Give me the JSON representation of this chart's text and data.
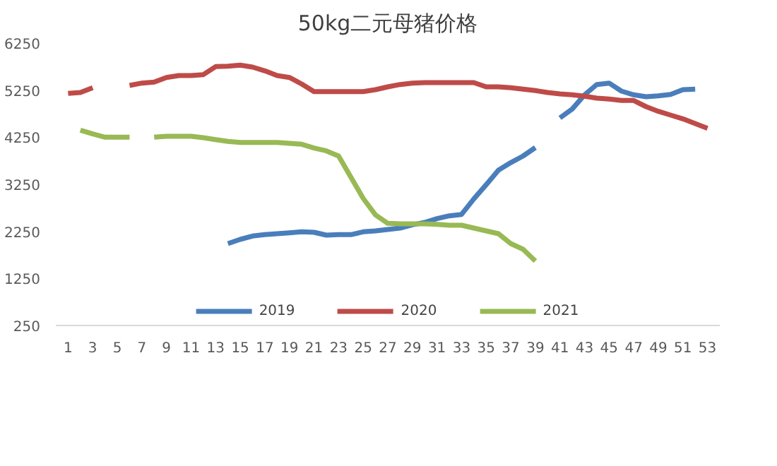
{
  "chart_data": {
    "type": "line",
    "title": "50kg二元母猪价格",
    "x": [
      1,
      2,
      3,
      4,
      5,
      6,
      7,
      8,
      9,
      10,
      11,
      12,
      13,
      14,
      15,
      16,
      17,
      18,
      19,
      20,
      21,
      22,
      23,
      24,
      25,
      26,
      27,
      28,
      29,
      30,
      31,
      32,
      33,
      34,
      35,
      36,
      37,
      38,
      39,
      40,
      41,
      42,
      43,
      44,
      45,
      46,
      47,
      48,
      49,
      50,
      51,
      52,
      53
    ],
    "series": [
      {
        "name": "2019",
        "color": "#4a7ebb",
        "values": [
          null,
          null,
          null,
          null,
          null,
          null,
          null,
          null,
          null,
          null,
          null,
          null,
          null,
          1990,
          2080,
          2150,
          2180,
          2200,
          2220,
          2240,
          2230,
          2170,
          2180,
          2180,
          2240,
          2260,
          2290,
          2320,
          2390,
          2440,
          2520,
          2580,
          2610,
          2940,
          3240,
          3550,
          3710,
          3850,
          4030,
          null,
          4660,
          4850,
          5150,
          5370,
          5400,
          5230,
          5150,
          5110,
          5130,
          5160,
          5260,
          5270,
          null
        ]
      },
      {
        "name": "2020",
        "color": "#be4b48",
        "values": [
          5180,
          5200,
          5300,
          null,
          null,
          5350,
          5400,
          5420,
          5520,
          5560,
          5560,
          5580,
          5750,
          5760,
          5780,
          5740,
          5660,
          5560,
          5520,
          5380,
          5220,
          5220,
          5220,
          5220,
          5220,
          5260,
          5320,
          5370,
          5400,
          5410,
          5410,
          5410,
          5410,
          5410,
          5320,
          5320,
          5300,
          5270,
          5240,
          5200,
          5170,
          5150,
          5120,
          5080,
          5060,
          5030,
          5030,
          4900,
          4800,
          4720,
          4640,
          4540,
          4440
        ]
      },
      {
        "name": "2021",
        "color": "#98b954",
        "values": [
          null,
          4400,
          4320,
          4250,
          4250,
          4250,
          null,
          4250,
          4270,
          4270,
          4270,
          4240,
          4200,
          4160,
          4140,
          4140,
          4140,
          4140,
          4120,
          4100,
          4020,
          3960,
          3850,
          3400,
          2950,
          2600,
          2420,
          2410,
          2410,
          2410,
          2400,
          2380,
          2380,
          2320,
          2260,
          2200,
          1990,
          1870,
          1620,
          null,
          null,
          null,
          null,
          null,
          null,
          null,
          null,
          null,
          null,
          null,
          null,
          null,
          null
        ]
      }
    ],
    "xlim": [
      0,
      54
    ],
    "xticks": [
      1,
      3,
      5,
      7,
      9,
      11,
      13,
      15,
      17,
      19,
      21,
      23,
      25,
      27,
      29,
      31,
      33,
      35,
      37,
      39,
      41,
      43,
      45,
      47,
      49,
      51,
      53
    ],
    "ylim": [
      250,
      6250
    ],
    "yticks": [
      250,
      1250,
      2250,
      3250,
      4250,
      5250,
      6250
    ],
    "grid": false,
    "legend": "bottom",
    "marker": "none",
    "line_style": "solid"
  }
}
